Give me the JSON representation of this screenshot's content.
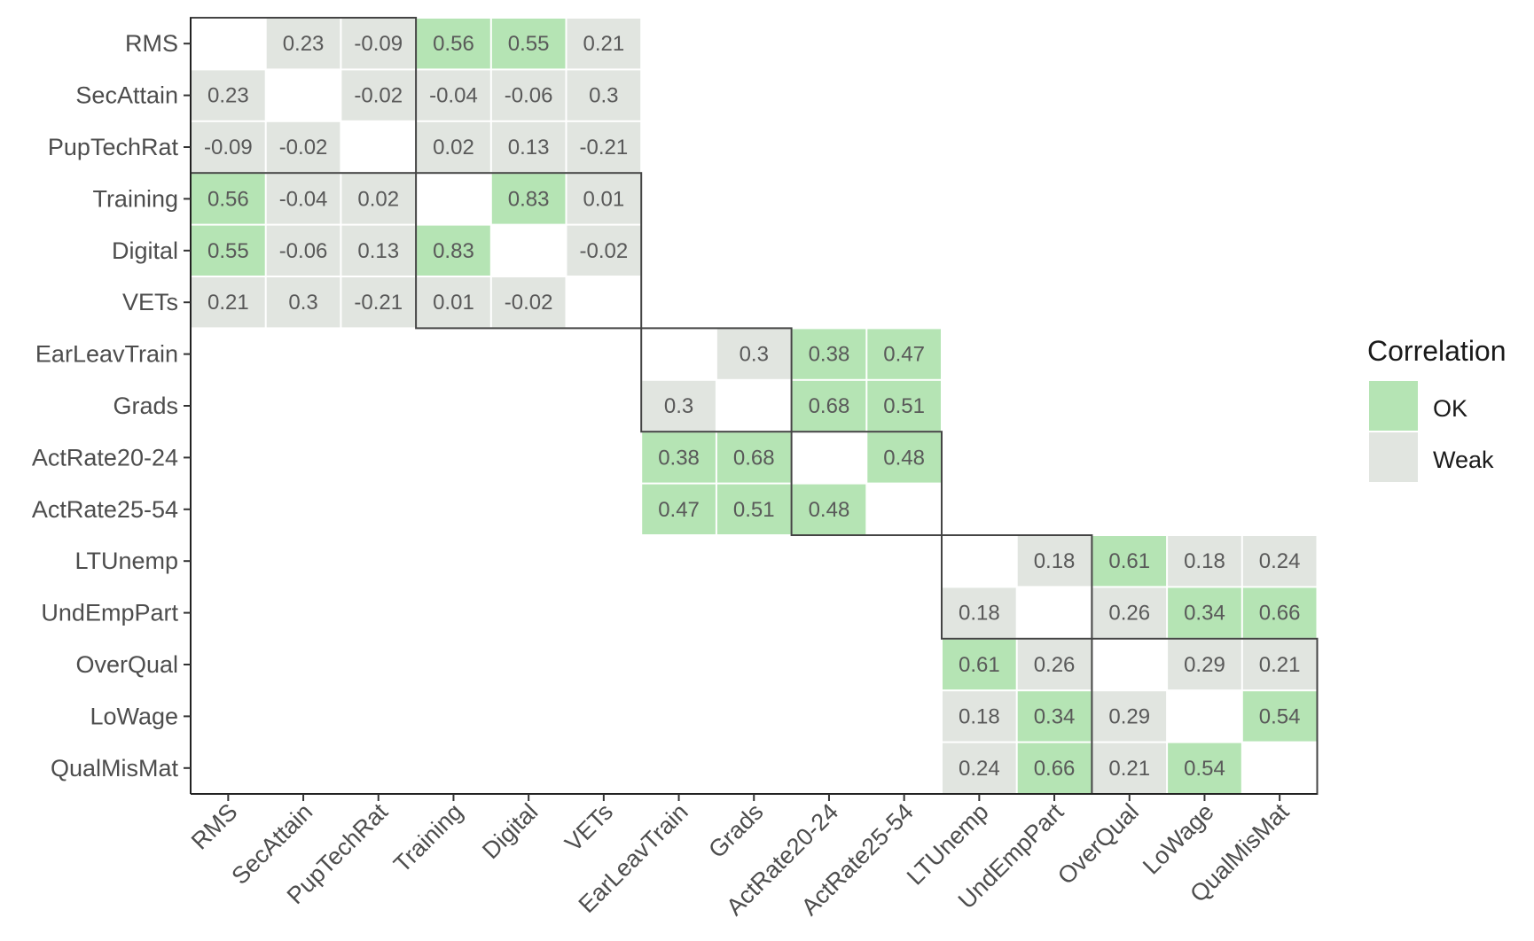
{
  "chart_data": {
    "type": "heatmap",
    "variables": [
      "RMS",
      "SecAttain",
      "PupTechRat",
      "Training",
      "Digital",
      "VETs",
      "EarLeavTrain",
      "Grads",
      "ActRate20-24",
      "ActRate25-54",
      "LTUnemp",
      "UndEmpPart",
      "OverQual",
      "LoWage",
      "QualMisMat"
    ],
    "matrix": [
      [
        null,
        0.23,
        -0.09,
        0.56,
        0.55,
        0.21,
        null,
        null,
        null,
        null,
        null,
        null,
        null,
        null,
        null
      ],
      [
        0.23,
        null,
        -0.02,
        -0.04,
        -0.06,
        0.3,
        null,
        null,
        null,
        null,
        null,
        null,
        null,
        null,
        null
      ],
      [
        -0.09,
        -0.02,
        null,
        0.02,
        0.13,
        -0.21,
        null,
        null,
        null,
        null,
        null,
        null,
        null,
        null,
        null
      ],
      [
        0.56,
        -0.04,
        0.02,
        null,
        0.83,
        0.01,
        null,
        null,
        null,
        null,
        null,
        null,
        null,
        null,
        null
      ],
      [
        0.55,
        -0.06,
        0.13,
        0.83,
        null,
        -0.02,
        null,
        null,
        null,
        null,
        null,
        null,
        null,
        null,
        null
      ],
      [
        0.21,
        0.3,
        -0.21,
        0.01,
        -0.02,
        null,
        null,
        null,
        null,
        null,
        null,
        null,
        null,
        null,
        null
      ],
      [
        null,
        null,
        null,
        null,
        null,
        null,
        null,
        0.3,
        0.38,
        0.47,
        null,
        null,
        null,
        null,
        null
      ],
      [
        null,
        null,
        null,
        null,
        null,
        null,
        0.3,
        null,
        0.68,
        0.51,
        null,
        null,
        null,
        null,
        null
      ],
      [
        null,
        null,
        null,
        null,
        null,
        null,
        0.38,
        0.68,
        null,
        0.48,
        null,
        null,
        null,
        null,
        null
      ],
      [
        null,
        null,
        null,
        null,
        null,
        null,
        0.47,
        0.51,
        0.48,
        null,
        null,
        null,
        null,
        null,
        null
      ],
      [
        null,
        null,
        null,
        null,
        null,
        null,
        null,
        null,
        null,
        null,
        null,
        0.18,
        0.61,
        0.18,
        0.24
      ],
      [
        null,
        null,
        null,
        null,
        null,
        null,
        null,
        null,
        null,
        null,
        0.18,
        null,
        0.26,
        0.34,
        0.66
      ],
      [
        null,
        null,
        null,
        null,
        null,
        null,
        null,
        null,
        null,
        null,
        0.61,
        0.26,
        null,
        0.29,
        0.21
      ],
      [
        null,
        null,
        null,
        null,
        null,
        null,
        null,
        null,
        null,
        null,
        0.18,
        0.34,
        0.29,
        null,
        0.54
      ],
      [
        null,
        null,
        null,
        null,
        null,
        null,
        null,
        null,
        null,
        null,
        0.24,
        0.66,
        0.21,
        0.54,
        null
      ]
    ],
    "categories_legend": {
      "title": "Correlation",
      "entries": [
        {
          "label": "OK",
          "color": "#b5e4b4"
        },
        {
          "label": "Weak",
          "color": "#e1e5e0"
        }
      ]
    },
    "rule": "OK when value >= 0.3 (except 0.3 marked Weak), else Weak",
    "ok_cells": [
      [
        0,
        3
      ],
      [
        0,
        4
      ],
      [
        3,
        0
      ],
      [
        4,
        0
      ],
      [
        3,
        4
      ],
      [
        4,
        3
      ],
      [
        6,
        8
      ],
      [
        6,
        9
      ],
      [
        7,
        8
      ],
      [
        7,
        9
      ],
      [
        8,
        6
      ],
      [
        8,
        7
      ],
      [
        8,
        9
      ],
      [
        9,
        6
      ],
      [
        9,
        7
      ],
      [
        9,
        8
      ],
      [
        10,
        12
      ],
      [
        11,
        13
      ],
      [
        11,
        14
      ],
      [
        12,
        10
      ],
      [
        13,
        11
      ],
      [
        13,
        14
      ],
      [
        14,
        11
      ],
      [
        14,
        13
      ]
    ],
    "blocks": [
      {
        "start": 0,
        "end": 2
      },
      {
        "start": 3,
        "end": 5
      },
      {
        "start": 6,
        "end": 7
      },
      {
        "start": 8,
        "end": 9
      },
      {
        "start": 10,
        "end": 11
      },
      {
        "start": 12,
        "end": 14
      }
    ],
    "legend_position": "right"
  }
}
